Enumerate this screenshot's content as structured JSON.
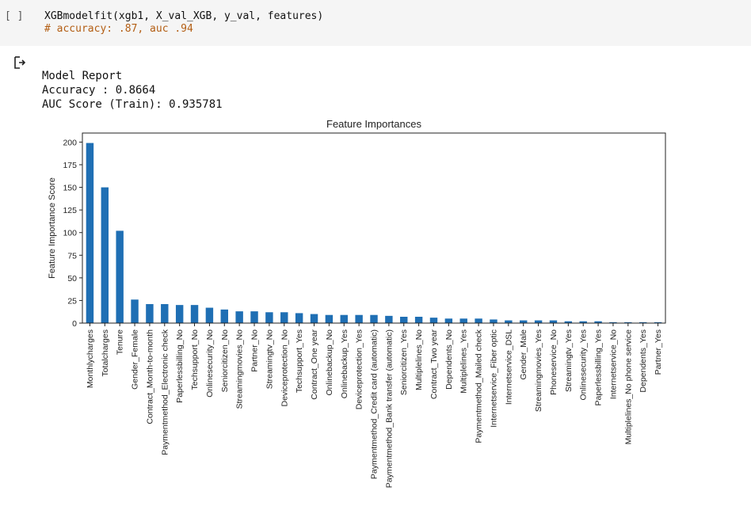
{
  "cell": {
    "prompt": "[ ]",
    "code_line": "XGBmodelfit(xgb1, X_val_XGB, y_val, features)",
    "comment_line": "# accuracy: .87, auc .94"
  },
  "output": {
    "icon": "output-arrow-icon",
    "lines": [
      "Model Report",
      "Accuracy : 0.8664",
      "AUC Score (Train): 0.935781"
    ]
  },
  "chart_data": {
    "type": "bar",
    "title": "Feature Importances",
    "xlabel": "",
    "ylabel": "Feature Importance Score",
    "ylim": [
      0,
      210
    ],
    "yticks": [
      0,
      25,
      50,
      75,
      100,
      125,
      150,
      175,
      200
    ],
    "bar_color": "#1f6fb4",
    "categories": [
      "Monthlycharges",
      "Totalcharges",
      "Tenure",
      "Gender_Female",
      "Contract_Month-to-month",
      "Paymentmethod_Electronic check",
      "Paperlessbilling_No",
      "Techsupport_No",
      "Onlinesecurity_No",
      "Seniorcitizen_No",
      "Streamingmovies_No",
      "Partner_No",
      "Streamingtv_No",
      "Deviceprotection_No",
      "Techsupport_Yes",
      "Contract_One year",
      "Onlinebackup_No",
      "Onlinebackup_Yes",
      "Deviceprotection_Yes",
      "Paymentmethod_Credit card (automatic)",
      "Paymentmethod_Bank transfer (automatic)",
      "Seniorcitizen_Yes",
      "Multiplelines_No",
      "Contract_Two year",
      "Dependents_No",
      "Multiplelines_Yes",
      "Paymentmethod_Mailed check",
      "Internetservice_Fiber optic",
      "Internetservice_DSL",
      "Gender_Male",
      "Streamingmovies_Yes",
      "Phoneservice_No",
      "Streamingtv_Yes",
      "Onlinesecurity_Yes",
      "Paperlessbilling_Yes",
      "Internetservice_No",
      "Multiplelines_No phone service",
      "Dependents_Yes",
      "Partner_Yes"
    ],
    "values": [
      199,
      150,
      102,
      26,
      21,
      21,
      20,
      20,
      17,
      15,
      13,
      13,
      12,
      12,
      11,
      10,
      9,
      9,
      9,
      9,
      8,
      7,
      7,
      6,
      5,
      5,
      5,
      4,
      3,
      3,
      3,
      3,
      2,
      2,
      2,
      1,
      1,
      1,
      1
    ]
  }
}
